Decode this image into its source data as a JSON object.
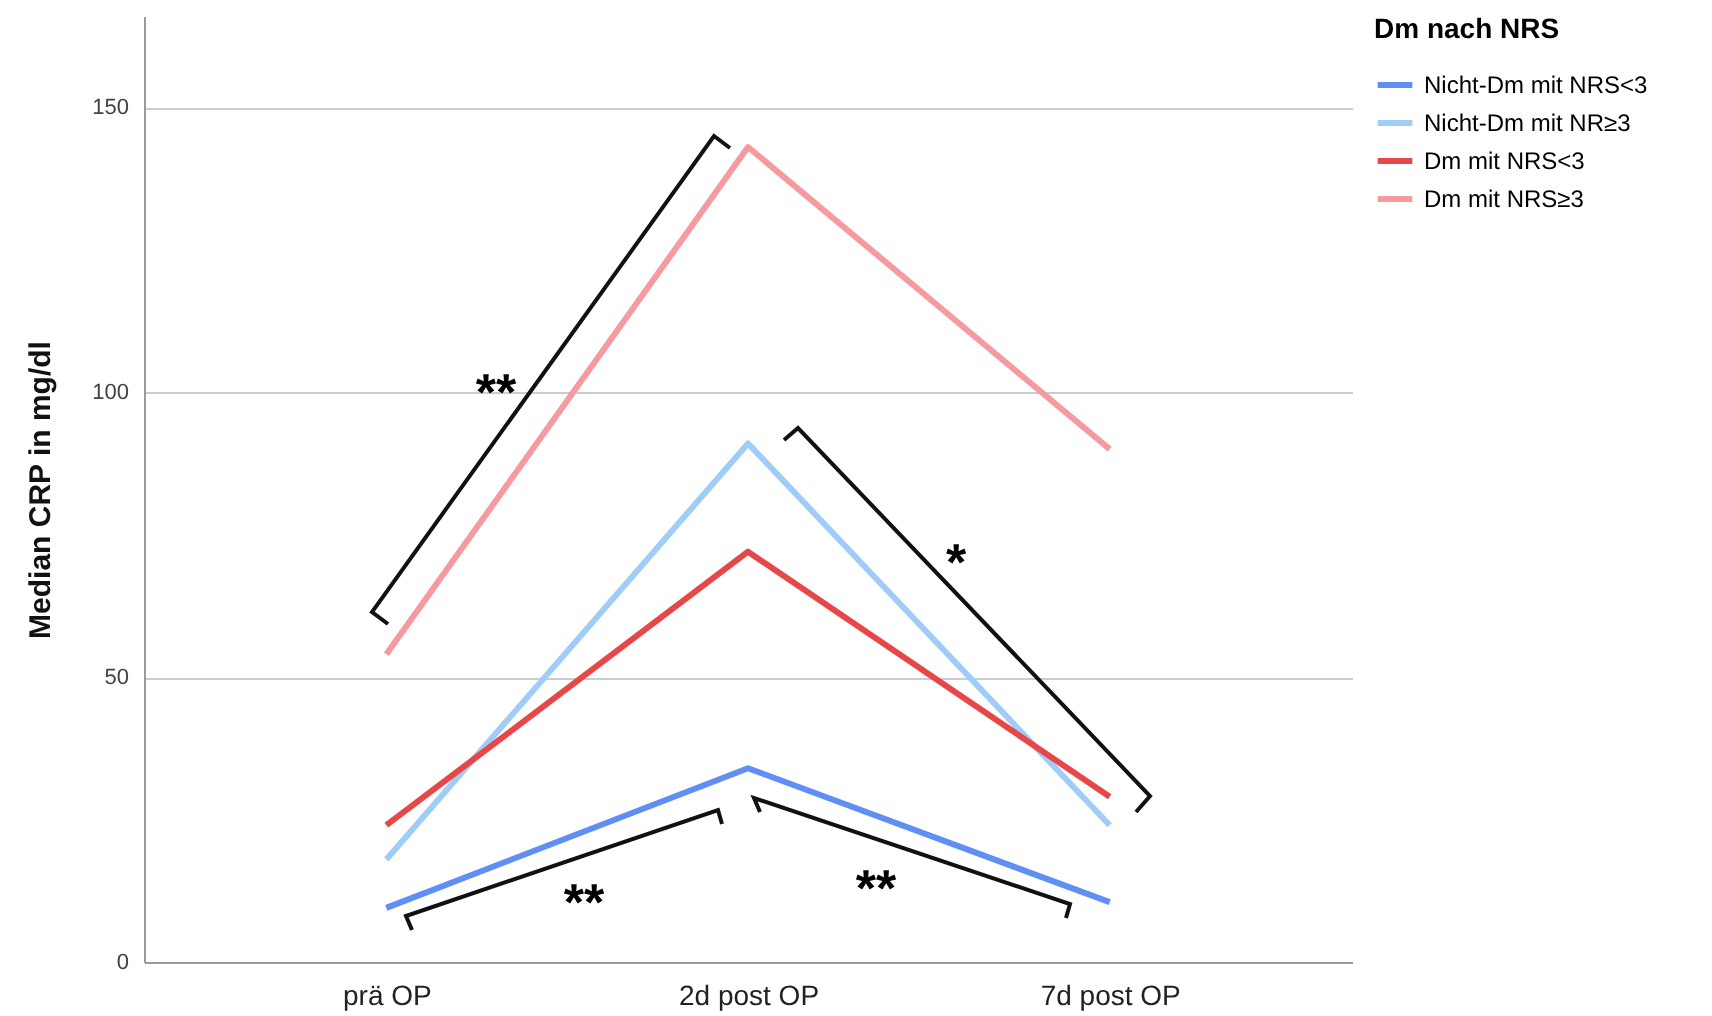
{
  "chart_data": {
    "type": "line",
    "ylabel": "Median CRP in mg/dl",
    "legend_title": "Dm nach NRS",
    "categories": [
      "prä OP",
      "2d post OP",
      "7d post OP"
    ],
    "series": [
      {
        "name": "Nicht-Dm mit NRS<3",
        "color": "#5f8ff5",
        "values": [
          9.5,
          34,
          10.5
        ]
      },
      {
        "name": "Nicht-Dm mit NR≥3",
        "color": "#a0cdf7",
        "values": [
          18,
          91,
          24
        ]
      },
      {
        "name": "Dm mit NRS<3",
        "color": "#e8474a",
        "values": [
          24,
          72,
          29
        ]
      },
      {
        "name": "Dm mit NRS≥3",
        "color": "#f59a9e",
        "values": [
          54,
          143,
          90
        ]
      }
    ],
    "ylim": [
      0,
      166
    ],
    "yticks": [
      0,
      50,
      100,
      150
    ],
    "grid": "y",
    "legend": "top right",
    "marker": "none",
    "line_style": "solid",
    "annotations": [
      "**",
      "*",
      "**",
      "**"
    ]
  }
}
